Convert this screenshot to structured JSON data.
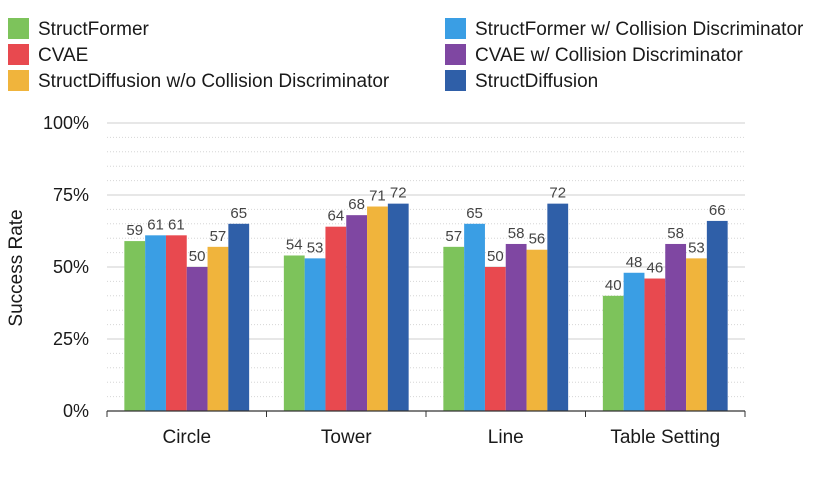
{
  "chart_data": {
    "type": "bar",
    "title": "",
    "xlabel": "",
    "ylabel": "Success Rate",
    "ylim": [
      0,
      100
    ],
    "yticks": [
      "0%",
      "25%",
      "50%",
      "75%",
      "100%"
    ],
    "categories": [
      "Circle",
      "Tower",
      "Line",
      "Table Setting"
    ],
    "series": [
      {
        "name": "StructFormer",
        "color": "#7dc35b",
        "values": [
          59,
          54,
          57,
          40
        ]
      },
      {
        "name": "StructFormer w/ Collision Discriminator",
        "color": "#3a9ee4",
        "values": [
          61,
          53,
          65,
          48
        ]
      },
      {
        "name": "CVAE",
        "color": "#e8494f",
        "values": [
          61,
          64,
          50,
          46
        ]
      },
      {
        "name": "CVAE w/ Collision Discriminator",
        "color": "#7f47a2",
        "values": [
          50,
          68,
          58,
          58
        ]
      },
      {
        "name": "StructDiffusion w/o Collision Discriminator",
        "color": "#f0b43c",
        "values": [
          57,
          71,
          56,
          53
        ]
      },
      {
        "name": "StructDiffusion",
        "color": "#2f5fa8",
        "values": [
          65,
          72,
          72,
          66
        ]
      }
    ],
    "legend_order": [
      0,
      2,
      4,
      1,
      3,
      5
    ],
    "grid": true,
    "legend_position": "top"
  }
}
